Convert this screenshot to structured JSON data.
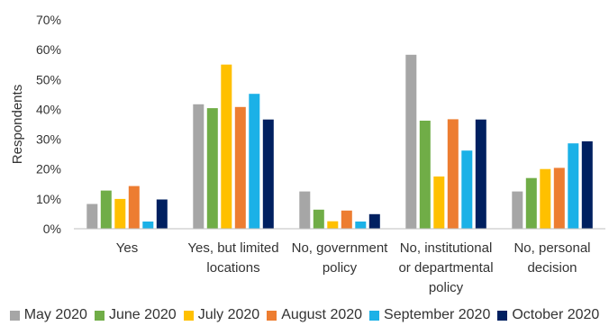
{
  "chart_data": {
    "type": "bar",
    "ylabel": "Respondents",
    "xlabel": "",
    "ylim": [
      0,
      70
    ],
    "yticks": [
      "0%",
      "10%",
      "20%",
      "30%",
      "40%",
      "50%",
      "60%",
      "70%"
    ],
    "grid": false,
    "legend_position": "bottom",
    "categories": [
      [
        "Yes"
      ],
      [
        "Yes, but limited",
        "locations"
      ],
      [
        "No, government",
        "policy"
      ],
      [
        "No, institutional",
        "or departmental",
        "policy"
      ],
      [
        "No, personal",
        "decision"
      ]
    ],
    "series": [
      {
        "name": "May 2020",
        "color": "#a6a6a6",
        "values": [
          8.3,
          41.7,
          12.5,
          58.3,
          12.5
        ]
      },
      {
        "name": "June 2020",
        "color": "#70ad47",
        "values": [
          12.8,
          40.4,
          6.4,
          36.2,
          17.0
        ]
      },
      {
        "name": "July 2020",
        "color": "#ffc000",
        "values": [
          10.0,
          55.0,
          2.5,
          17.5,
          20.0
        ]
      },
      {
        "name": "August 2020",
        "color": "#ed7d31",
        "values": [
          14.3,
          40.8,
          6.1,
          36.7,
          20.4
        ]
      },
      {
        "name": "September 2020",
        "color": "#1bb1e7",
        "values": [
          2.4,
          45.2,
          2.4,
          26.2,
          28.6
        ]
      },
      {
        "name": "October 2020",
        "color": "#002060",
        "values": [
          9.8,
          36.6,
          4.9,
          36.6,
          29.3
        ]
      }
    ]
  }
}
